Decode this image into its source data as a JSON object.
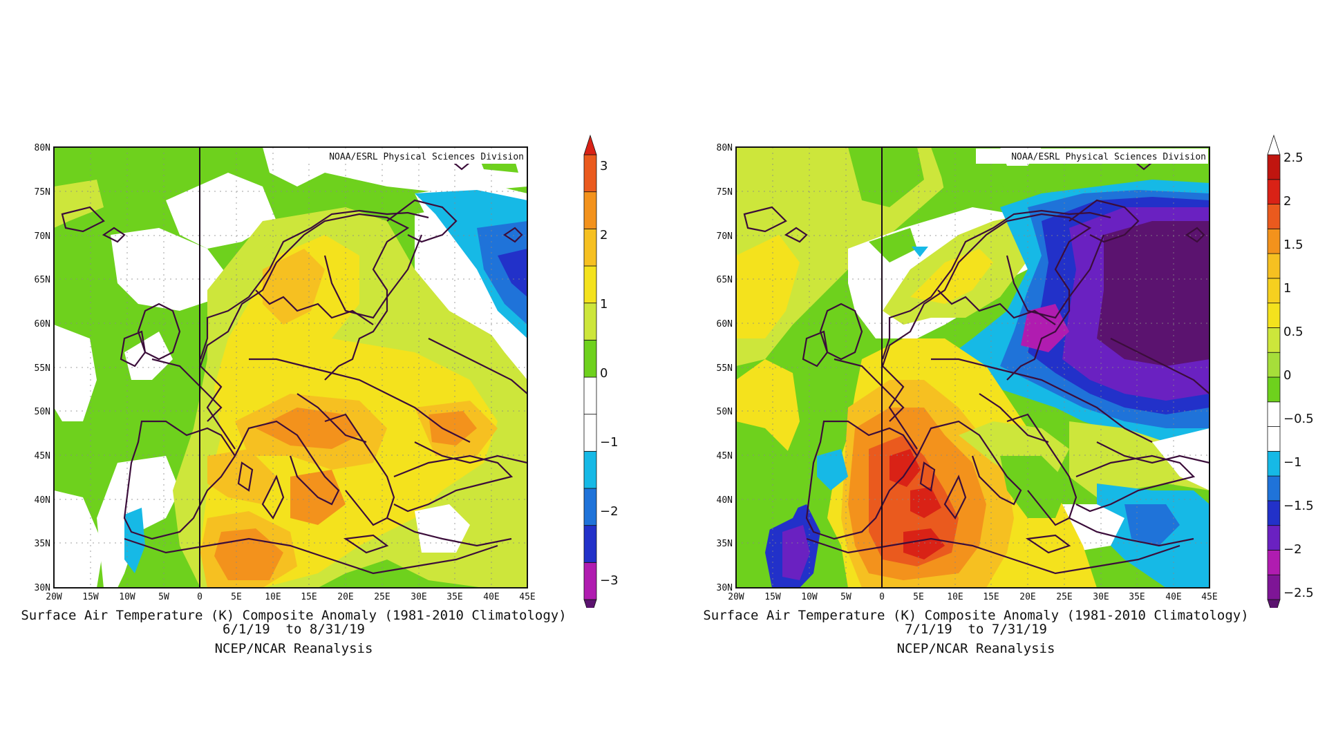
{
  "colors": {
    "white": "#ffffff",
    "light_green": "#a6de3a",
    "green": "#6ed11d",
    "yellow_green": "#cde63b",
    "yellow": "#f4e21d",
    "orange_yellow": "#f6c021",
    "orange": "#f3921c",
    "red_orange": "#ea5a1e",
    "red": "#d92216",
    "cyan": "#16b9e6",
    "blue": "#1f73d9",
    "deep_blue": "#2231c9",
    "violet": "#6a21c1",
    "magenta": "#b01cb0",
    "purple": "#5b136f",
    "border": "#3b0d3a"
  },
  "panels": [
    {
      "credit": "NOAA/ESRL Physical Sciences Division",
      "lat_labels": [
        "80N",
        "75N",
        "70N",
        "65N",
        "60N",
        "55N",
        "50N",
        "45N",
        "40N",
        "35N",
        "30N"
      ],
      "lon_labels": [
        "20W",
        "15W",
        "10W",
        "5W",
        "0",
        "5E",
        "10E",
        "15E",
        "20E",
        "25E",
        "30E",
        "35E",
        "40E",
        "45E"
      ],
      "caption_line1": "Surface Air Temperature (K) Composite Anomaly (1981-2010 Climatology)",
      "caption_line2": "6/1/19  to 8/31/19",
      "caption_line3": "NCEP/NCAR Reanalysis",
      "colorbar_labels": [
        "3",
        "2",
        "1",
        "0",
        "−1",
        "−2",
        "−3"
      ],
      "colorbar_colors": [
        "#5b136f",
        "#b01cb0",
        "#2231c9",
        "#1f73d9",
        "#16b9e6",
        "#ffffff",
        "#ffffff",
        "#6ed11d",
        "#cde63b",
        "#f4e21d",
        "#f6c021",
        "#f3921c",
        "#ea5a1e",
        "#d92216"
      ]
    },
    {
      "credit": "NOAA/ESRL Physical Sciences Division",
      "lat_labels": [
        "80N",
        "75N",
        "70N",
        "65N",
        "60N",
        "55N",
        "50N",
        "45N",
        "40N",
        "35N",
        "30N"
      ],
      "lon_labels": [
        "20W",
        "15W",
        "10W",
        "5W",
        "0",
        "5E",
        "10E",
        "15E",
        "20E",
        "25E",
        "30E",
        "35E",
        "40E",
        "45E"
      ],
      "caption_line1": "Surface Air Temperature (K) Composite Anomaly (1981-2010 Climatology)",
      "caption_line2": "7/1/19  to 7/31/19",
      "caption_line3": "NCEP/NCAR Reanalysis",
      "colorbar_labels": [
        "2.5",
        "2",
        "1.5",
        "1",
        "0.5",
        "0",
        "−0.5",
        "−1",
        "−1.5",
        "−2",
        "−2.5"
      ],
      "colorbar_colors": [
        "#5b136f",
        "#7e1596",
        "#b01cb0",
        "#6a21c1",
        "#2231c9",
        "#1f73d9",
        "#16b9e6",
        "#ffffff",
        "#ffffff",
        "#6ed11d",
        "#a6de3a",
        "#cde63b",
        "#f4e21d",
        "#f6d01f",
        "#f6c021",
        "#f3921c",
        "#ea5a1e",
        "#d92216",
        "#c0150f",
        "#ffffff"
      ]
    }
  ]
}
